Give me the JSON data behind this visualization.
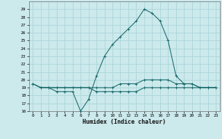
{
  "xlabel": "Humidex (Indice chaleur)",
  "ylabel": "",
  "background_color": "#cce9ec",
  "grid_color": "#aad4d8",
  "line_color": "#1a6b6b",
  "xlim": [
    -0.5,
    23.5
  ],
  "ylim": [
    16,
    30
  ],
  "yticks": [
    16,
    17,
    18,
    19,
    20,
    21,
    22,
    23,
    24,
    25,
    26,
    27,
    28,
    29
  ],
  "xticks": [
    0,
    1,
    2,
    3,
    4,
    5,
    6,
    7,
    8,
    9,
    10,
    11,
    12,
    13,
    14,
    15,
    16,
    17,
    18,
    19,
    20,
    21,
    22,
    23
  ],
  "series": [
    {
      "x": [
        0,
        1,
        2,
        3,
        4,
        5,
        6,
        7,
        8,
        9,
        10,
        11,
        12,
        13,
        14,
        15,
        16,
        17,
        18,
        19,
        20,
        21,
        22,
        23
      ],
      "y": [
        19.5,
        19.0,
        19.0,
        18.5,
        18.5,
        18.5,
        16.0,
        17.5,
        20.5,
        23.0,
        24.5,
        25.5,
        26.5,
        27.5,
        29.0,
        28.5,
        27.5,
        25.0,
        20.5,
        19.5,
        19.5,
        19.0,
        19.0,
        19.0
      ]
    },
    {
      "x": [
        0,
        1,
        2,
        3,
        4,
        5,
        6,
        7,
        8,
        9,
        10,
        11,
        12,
        13,
        14,
        15,
        16,
        17,
        18,
        19,
        20,
        21,
        22,
        23
      ],
      "y": [
        19.5,
        19.0,
        19.0,
        19.0,
        19.0,
        19.0,
        19.0,
        19.0,
        19.0,
        19.0,
        19.0,
        19.5,
        19.5,
        19.5,
        20.0,
        20.0,
        20.0,
        20.0,
        19.5,
        19.5,
        19.5,
        19.0,
        19.0,
        19.0
      ]
    },
    {
      "x": [
        0,
        1,
        2,
        3,
        4,
        5,
        6,
        7,
        8,
        9,
        10,
        11,
        12,
        13,
        14,
        15,
        16,
        17,
        18,
        19,
        20,
        21,
        22,
        23
      ],
      "y": [
        19.5,
        19.0,
        19.0,
        19.0,
        19.0,
        19.0,
        19.0,
        19.0,
        18.5,
        18.5,
        18.5,
        18.5,
        18.5,
        18.5,
        19.0,
        19.0,
        19.0,
        19.0,
        19.0,
        19.0,
        19.0,
        19.0,
        19.0,
        19.0
      ]
    }
  ]
}
